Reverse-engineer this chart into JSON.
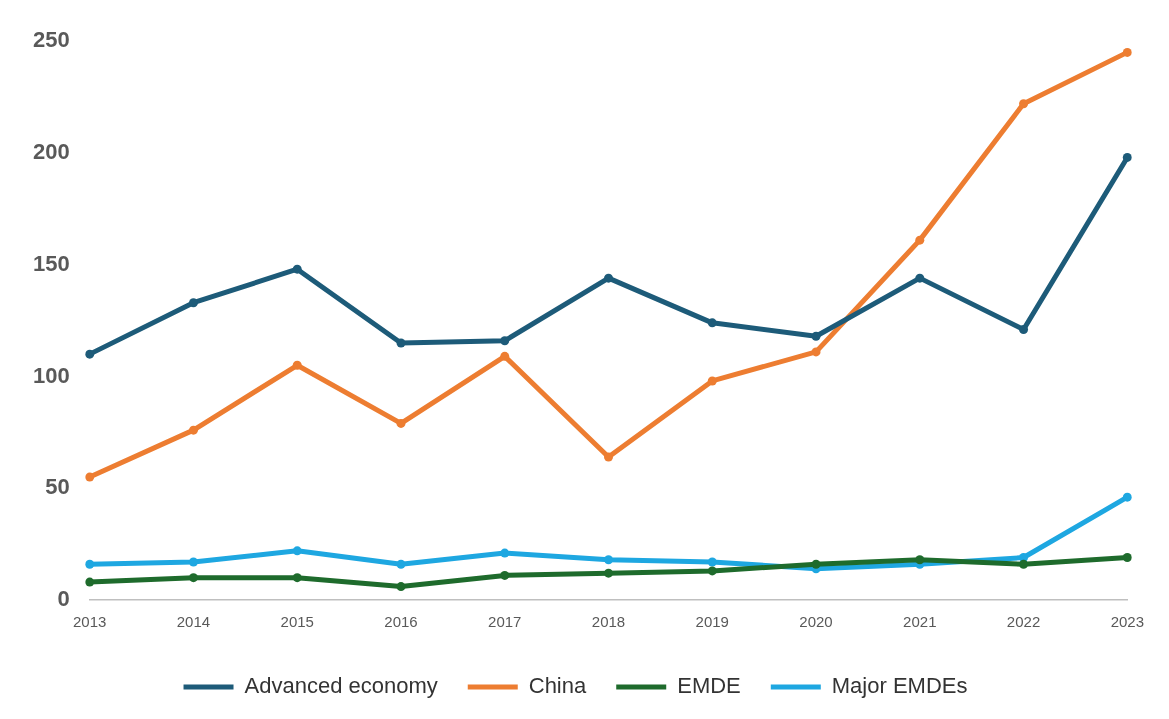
{
  "chart_data": {
    "type": "line",
    "categories": [
      "2013",
      "2014",
      "2015",
      "2016",
      "2017",
      "2018",
      "2019",
      "2020",
      "2021",
      "2022",
      "2023"
    ],
    "series": [
      {
        "name": "Advanced economy",
        "color": "#1d5b79",
        "values": [
          110,
          133,
          148,
          115,
          116,
          144,
          124,
          118,
          144,
          121,
          198
        ]
      },
      {
        "name": "China",
        "color": "#ed7d31",
        "values": [
          55,
          76,
          105,
          79,
          109,
          64,
          98,
          111,
          161,
          222,
          245
        ]
      },
      {
        "name": "EMDE",
        "color": "#1e6b2c",
        "values": [
          8,
          10,
          10,
          6,
          11,
          12,
          13,
          16,
          18,
          16,
          19
        ]
      },
      {
        "name": "Major EMDEs",
        "color": "#1ea7e1",
        "values": [
          16,
          17,
          22,
          16,
          21,
          18,
          17,
          14,
          16,
          19,
          46
        ]
      }
    ],
    "ylim": [
      0,
      250
    ],
    "yticks": [
      0,
      50,
      100,
      150,
      200,
      250
    ],
    "grid": false,
    "legend": "bottom",
    "marker": "circle",
    "line_style": "solid"
  }
}
